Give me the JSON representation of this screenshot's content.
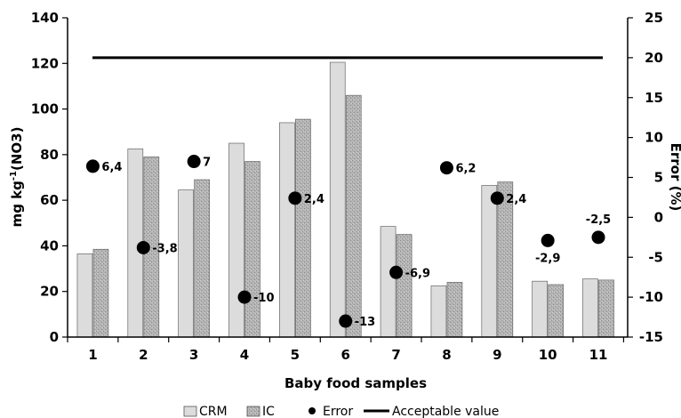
{
  "chart_data": {
    "type": "bar",
    "title": "",
    "xlabel": "Baby food samples",
    "ylabel": "mg kg-1(NO3)",
    "ylabel_parts": [
      "mg kg",
      "-1",
      "(NO3)"
    ],
    "y2label": "Error (%)",
    "ylim": [
      0,
      140
    ],
    "y_ticks": [
      0,
      20,
      40,
      60,
      80,
      100,
      120,
      140
    ],
    "y2lim": [
      -15,
      25
    ],
    "y2_ticks": [
      -15,
      -10,
      -5,
      0,
      5,
      10,
      15,
      20,
      25
    ],
    "categories": [
      "1",
      "2",
      "3",
      "4",
      "5",
      "6",
      "7",
      "8",
      "9",
      "10",
      "11"
    ],
    "series": [
      {
        "name": "CRM",
        "type": "bar",
        "axis": "left",
        "color": "#dcdcdc",
        "values": [
          36.5,
          82.5,
          64.5,
          85,
          94,
          120.5,
          48.5,
          22.5,
          66.5,
          24.5,
          25.5
        ]
      },
      {
        "name": "IC",
        "type": "bar",
        "axis": "left",
        "color": "#a8a8a8",
        "values": [
          38.5,
          79,
          69,
          77,
          95.5,
          106,
          45,
          24,
          68,
          23,
          25
        ]
      },
      {
        "name": "Error",
        "type": "scatter",
        "axis": "right",
        "color": "#000000",
        "values": [
          6.4,
          -3.8,
          7,
          -10,
          2.4,
          -13,
          -6.9,
          6.2,
          2.4,
          -2.9,
          -2.5
        ],
        "labels": [
          "6,4",
          "-3,8",
          "7",
          "-10",
          "2,4",
          "-13",
          "-6,9",
          "6,2",
          "2,4",
          "-2,9",
          "-2,5"
        ]
      },
      {
        "name": "Acceptable value",
        "type": "line",
        "axis": "right",
        "color": "#000000",
        "value": 20
      }
    ],
    "legend_position": "bottom",
    "grid": false
  }
}
